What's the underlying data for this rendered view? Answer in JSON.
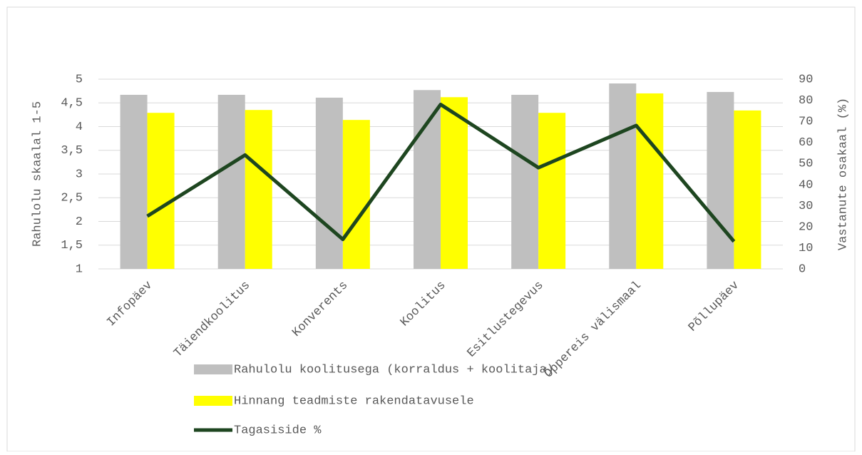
{
  "chart_data": {
    "type": "bar",
    "categories": [
      "Infopäev",
      "Täiendkoolitus",
      "Konverents",
      "Koolitus",
      "Esitlustegevus",
      "Õppereis välismaal",
      "Põllupäev"
    ],
    "series": [
      {
        "name": "Rahulolu koolitusega (korraldus + koolitaja)",
        "type": "bar",
        "color": "#bfbfbf",
        "values": [
          4.67,
          4.67,
          4.61,
          4.77,
          4.67,
          4.91,
          4.73
        ]
      },
      {
        "name": "Hinnang teadmiste rakendatavusele",
        "type": "bar",
        "color": "#ffff00",
        "values": [
          4.29,
          4.35,
          4.14,
          4.62,
          4.29,
          4.7,
          4.34
        ]
      },
      {
        "name": "Tagasiside %",
        "type": "line",
        "axis": "y2",
        "color": "#1e4620",
        "values": [
          25,
          54,
          14,
          78,
          48,
          68,
          13
        ]
      }
    ],
    "ylabel": "Rahulolu skaalal 1-5",
    "y2label": "Vastanute osakaal (%)",
    "ylim": [
      1,
      5
    ],
    "yticks": [
      1,
      {
        "value": 1.5,
        "label": "1,5"
      },
      2,
      {
        "value": 2.5,
        "label": "2,5"
      },
      3,
      {
        "value": 3.5,
        "label": "3,5"
      },
      4,
      {
        "value": 4.5,
        "label": "4,5"
      },
      5
    ],
    "y2lim": [
      0,
      90
    ],
    "y2ticks": [
      0,
      10,
      20,
      30,
      40,
      50,
      60,
      70,
      80,
      90
    ],
    "grid": true,
    "legend": "bottom"
  }
}
